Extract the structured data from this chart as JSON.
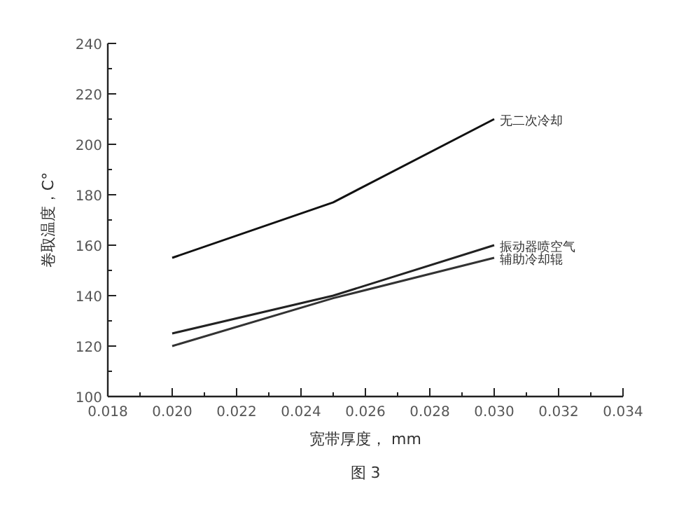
{
  "chart_data": {
    "type": "line",
    "xlabel": "宽带厚度， mm",
    "ylabel": "卷取温度，C°",
    "annotations": [
      "图 3"
    ],
    "xlim": [
      0.018,
      0.034
    ],
    "ylim": [
      100,
      240
    ],
    "xticks": [
      0.018,
      {
        "value": 0.019,
        "label": null
      },
      "0.020",
      {
        "value": 0.021,
        "label": null
      },
      0.022,
      {
        "value": 0.023,
        "label": null
      },
      0.024,
      {
        "value": 0.025,
        "label": null
      },
      0.026,
      {
        "value": 0.027,
        "label": null
      },
      0.028,
      {
        "value": 0.029,
        "label": null
      },
      "0.030",
      {
        "value": 0.031,
        "label": null
      },
      0.032,
      {
        "value": 0.033,
        "label": null
      },
      0.034
    ],
    "yticks": [
      100,
      {
        "value": 110,
        "label": null
      },
      120,
      {
        "value": 130,
        "label": null
      },
      140,
      {
        "value": 150,
        "label": null
      },
      160,
      {
        "value": 170,
        "label": null
      },
      180,
      {
        "value": 190,
        "label": null
      },
      200,
      {
        "value": 210,
        "label": null
      },
      220,
      {
        "value": 230,
        "label": null
      },
      240
    ],
    "x": [
      0.02,
      0.025,
      0.03
    ],
    "series": [
      {
        "name": "无二次冷却",
        "color": "#111111",
        "values": [
          155,
          177,
          210
        ]
      },
      {
        "name": "振动器喷空气",
        "color": "#222222",
        "values": [
          125,
          140,
          160
        ]
      },
      {
        "name": "辅助冷却辊",
        "color": "#333333",
        "values": [
          120,
          139,
          155
        ]
      }
    ]
  }
}
